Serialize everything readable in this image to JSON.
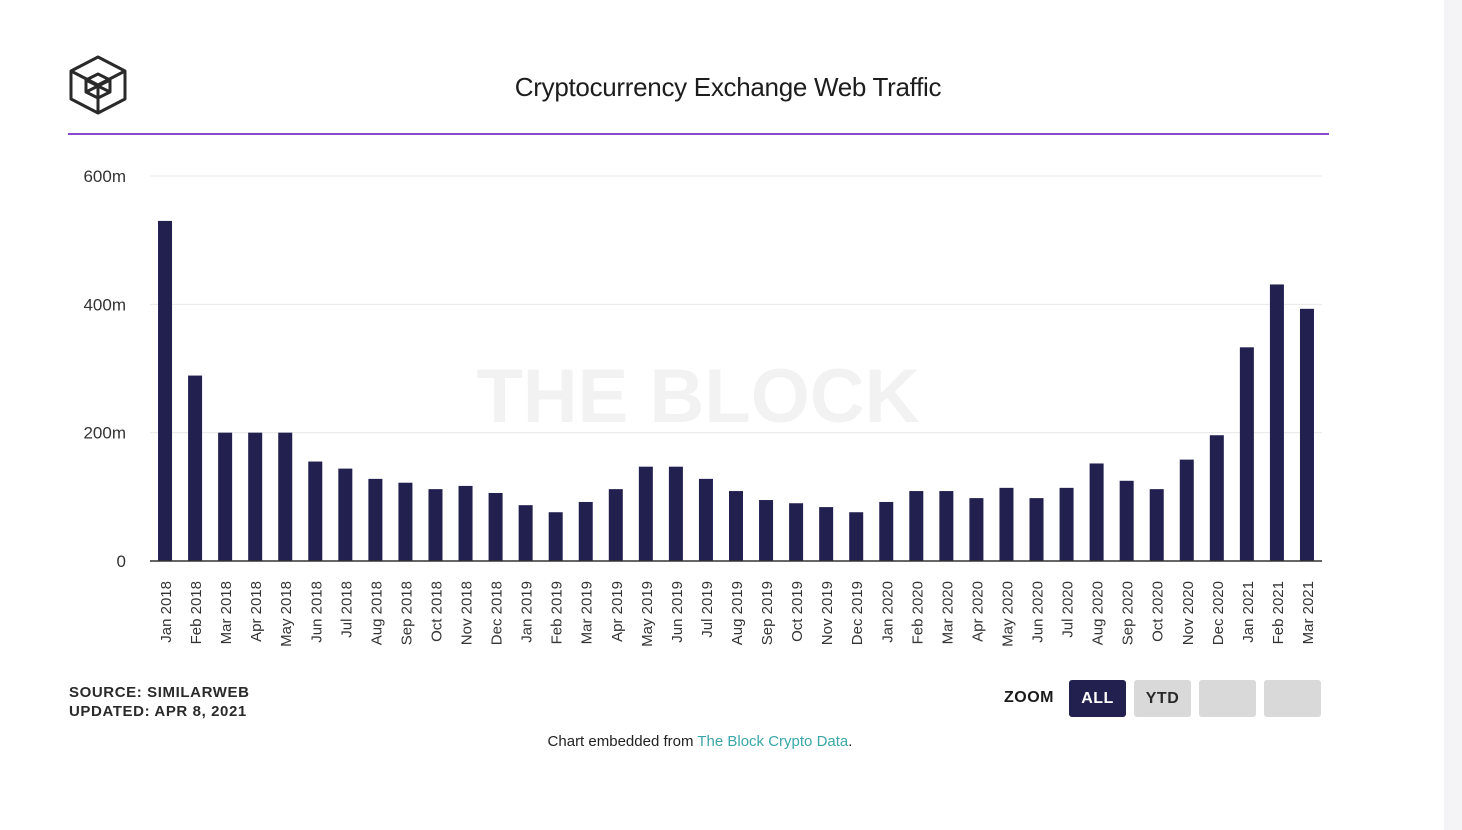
{
  "header": {
    "title": "Cryptocurrency Exchange Web Traffic",
    "accent_color": "#8a4ad0",
    "logo_icon": "the-block-cube-icon"
  },
  "chart_data": {
    "type": "bar",
    "title": "Cryptocurrency Exchange Web Traffic",
    "watermark": "THE BLOCK",
    "xlabel": "",
    "ylabel": "",
    "ylim": [
      0,
      600
    ],
    "yticks": [
      {
        "value": 0,
        "label": "0"
      },
      {
        "value": 200,
        "label": "200m"
      },
      {
        "value": 400,
        "label": "400m"
      },
      {
        "value": 600,
        "label": "600m"
      }
    ],
    "grid": true,
    "bar_color": "#22204f",
    "categories": [
      "Jan 2018",
      "Feb 2018",
      "Mar 2018",
      "Apr 2018",
      "May 2018",
      "Jun 2018",
      "Jul 2018",
      "Aug 2018",
      "Sep 2018",
      "Oct 2018",
      "Nov 2018",
      "Dec 2018",
      "Jan 2019",
      "Feb 2019",
      "Mar 2019",
      "Apr 2019",
      "May 2019",
      "Jun 2019",
      "Jul 2019",
      "Aug 2019",
      "Sep 2019",
      "Oct 2019",
      "Nov 2019",
      "Dec 2019",
      "Jan 2020",
      "Feb 2020",
      "Mar 2020",
      "Apr 2020",
      "May 2020",
      "Jun 2020",
      "Jul 2020",
      "Aug 2020",
      "Sep 2020",
      "Oct 2020",
      "Nov 2020",
      "Dec 2020",
      "Jan 2021",
      "Feb 2021",
      "Mar 2021"
    ],
    "values": [
      530,
      289,
      200,
      200,
      200,
      155,
      144,
      128,
      122,
      112,
      117,
      106,
      87,
      76,
      92,
      112,
      147,
      147,
      128,
      109,
      95,
      90,
      84,
      76,
      92,
      109,
      109,
      98,
      114,
      98,
      114,
      152,
      125,
      112,
      158,
      196,
      333,
      431,
      393
    ]
  },
  "footer": {
    "source_line": "SOURCE: SIMILARWEB",
    "updated_line": "UPDATED: APR 8, 2021",
    "embed_prefix": "Chart embedded from ",
    "embed_link": "The Block Crypto Data",
    "embed_suffix": "."
  },
  "zoom": {
    "label": "ZOOM",
    "buttons": [
      "ALL",
      "YTD",
      "",
      ""
    ],
    "selected": "ALL"
  }
}
